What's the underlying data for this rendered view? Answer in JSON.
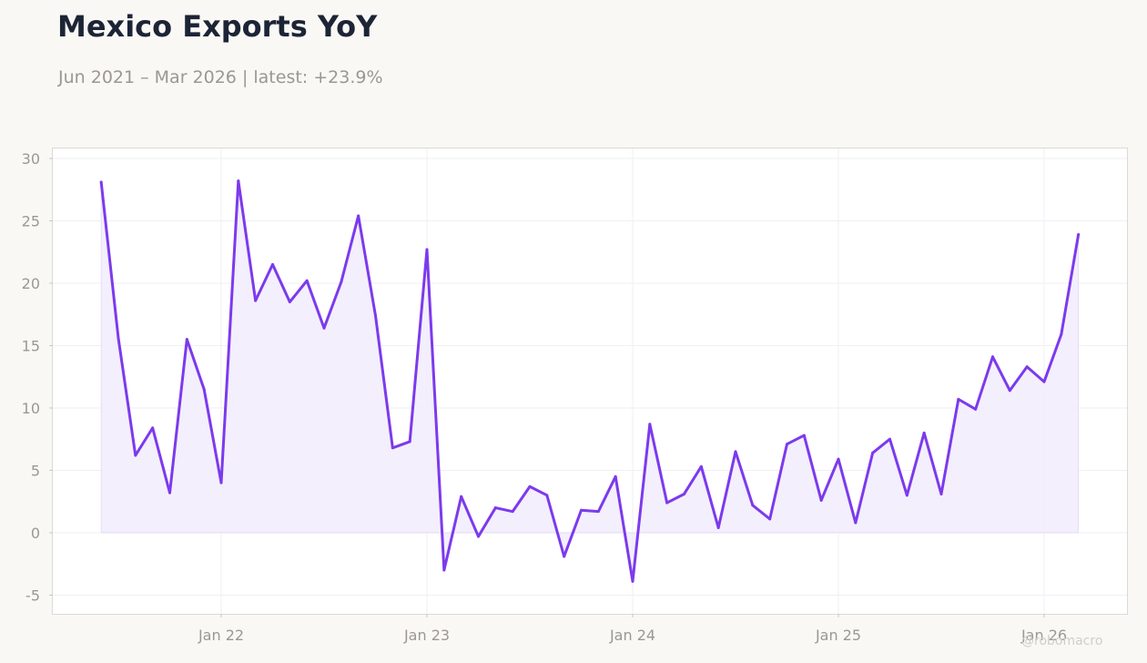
{
  "title": "Mexico Exports YoY",
  "subtitle": "Jun 2021 – Mar 2026 | latest: +23.9%",
  "watermark": "@robomacro",
  "colors": {
    "line": "#7c3aed",
    "fill": "#f2edfc",
    "background": "#f9f8f5",
    "plot_background": "#ffffff",
    "grid": "#efeff5",
    "tick_text": "#9a9890"
  },
  "chart_data": {
    "type": "area",
    "title": "Mexico Exports YoY",
    "subtitle": "Jun 2021 – Mar 2026 | latest: +23.9%",
    "xlabel": "",
    "ylabel": "",
    "ylim": [
      -6.5,
      30.8
    ],
    "grid": true,
    "legend": "none",
    "y_ticks": [
      30,
      25,
      20,
      15,
      10,
      5,
      0,
      -5
    ],
    "y_tick_labels": [
      "30",
      "25",
      "20",
      "15",
      "10",
      "5",
      "0",
      "-5"
    ],
    "x_ticks": [
      "2022-01",
      "2023-01",
      "2024-01",
      "2025-01",
      "2026-01"
    ],
    "x_tick_labels": [
      "Jan 22",
      "Jan 23",
      "Jan 24",
      "Jan 25",
      "Jan 26"
    ],
    "x": [
      "2021-06",
      "2021-07",
      "2021-08",
      "2021-09",
      "2021-10",
      "2021-11",
      "2021-12",
      "2022-01",
      "2022-02",
      "2022-03",
      "2022-04",
      "2022-05",
      "2022-06",
      "2022-07",
      "2022-08",
      "2022-09",
      "2022-10",
      "2022-11",
      "2022-12",
      "2023-01",
      "2023-02",
      "2023-03",
      "2023-04",
      "2023-05",
      "2023-06",
      "2023-07",
      "2023-08",
      "2023-09",
      "2023-10",
      "2023-11",
      "2023-12",
      "2024-01",
      "2024-02",
      "2024-03",
      "2024-04",
      "2024-05",
      "2024-06",
      "2024-07",
      "2024-08",
      "2024-09",
      "2024-10",
      "2024-11",
      "2024-12",
      "2025-01",
      "2025-02",
      "2025-03",
      "2025-04",
      "2025-05",
      "2025-06",
      "2025-07",
      "2025-08",
      "2025-09",
      "2025-10",
      "2025-11",
      "2025-12",
      "2026-01",
      "2026-02",
      "2026-03"
    ],
    "values": [
      28.1,
      15.6,
      6.2,
      8.4,
      3.2,
      15.5,
      11.5,
      4.0,
      28.2,
      18.6,
      21.5,
      18.5,
      20.2,
      16.4,
      20.1,
      25.4,
      17.4,
      6.8,
      7.3,
      22.7,
      -3.0,
      2.9,
      -0.3,
      2.0,
      1.7,
      3.7,
      3.0,
      -1.9,
      1.8,
      1.7,
      4.5,
      -3.9,
      8.7,
      2.4,
      3.1,
      5.3,
      0.4,
      6.5,
      2.2,
      1.1,
      7.1,
      7.8,
      2.6,
      5.9,
      0.8,
      6.4,
      7.5,
      3.0,
      8.0,
      3.1,
      10.7,
      9.9,
      14.1,
      11.4,
      13.3,
      12.1,
      15.9,
      23.9
    ]
  }
}
